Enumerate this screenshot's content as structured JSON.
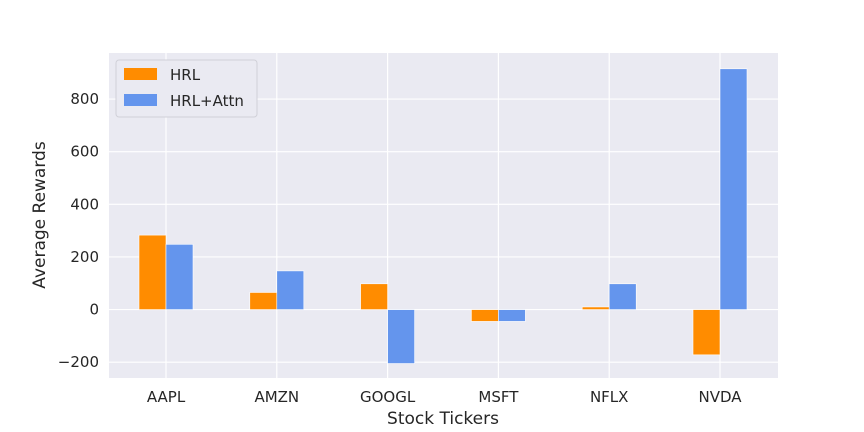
{
  "chart_data": {
    "type": "bar",
    "categories": [
      "AAPL",
      "AMZN",
      "GOOGL",
      "MSFT",
      "NFLX",
      "NVDA"
    ],
    "series": [
      {
        "name": "HRL",
        "color": "#ff8c00",
        "values": [
          283,
          65,
          98,
          -45,
          10,
          -172
        ]
      },
      {
        "name": "HRL+Attn",
        "color": "#6495ed",
        "values": [
          248,
          147,
          -205,
          -45,
          98,
          915
        ]
      }
    ],
    "xlabel": "Stock Tickers",
    "ylabel": "Average Rewards",
    "ylim": [
      -260,
      975
    ],
    "yticks": [
      -200,
      0,
      200,
      400,
      600,
      800
    ],
    "ytick_labels": [
      "−200",
      "0",
      "200",
      "400",
      "600",
      "800"
    ],
    "grid": true,
    "legend_position": "top-left",
    "background": "#eaeaf2"
  }
}
